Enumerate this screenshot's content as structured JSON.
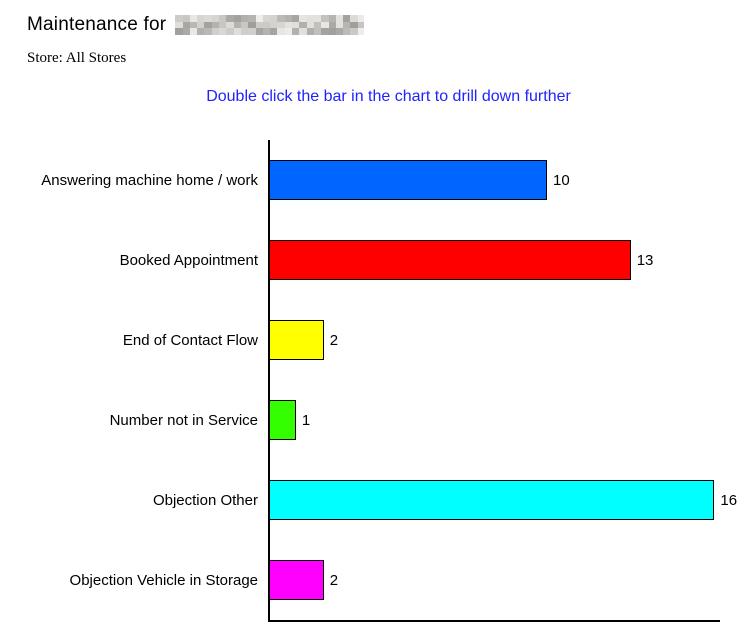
{
  "header": {
    "title_prefix": "Maintenance for",
    "store_line": "Store: All Stores"
  },
  "instruction": {
    "text": "Double click the bar in the chart to drill down further",
    "color": "#2222ff"
  },
  "chart_data": {
    "type": "bar",
    "orientation": "horizontal",
    "title": "",
    "xlabel": "",
    "ylabel": "",
    "categories": [
      "Answering machine home / work",
      "Booked Appointment",
      "End of Contact Flow",
      "Number not in Service",
      "Objection Other",
      "Objection Vehicle in Storage"
    ],
    "values": [
      10,
      13,
      2,
      1,
      16,
      2
    ],
    "colors": [
      "#0066ff",
      "#ff0000",
      "#ffff00",
      "#33ff00",
      "#00ffff",
      "#ff00ff"
    ],
    "value_labels": [
      "10",
      "13",
      "2",
      "1",
      "16",
      "2"
    ],
    "xlim": [
      0,
      16.2
    ],
    "grid": false,
    "legend": "none",
    "axis_color": "#000000",
    "bar_border_color": "#000000"
  }
}
